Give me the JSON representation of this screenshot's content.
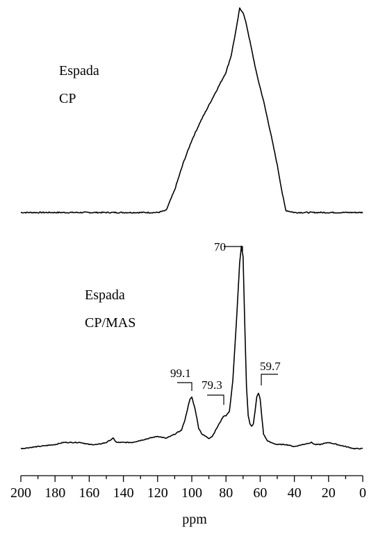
{
  "chart_data": {
    "type": "line",
    "xlabel": "ppm",
    "xlim": [
      200,
      0
    ],
    "x_reversed": true,
    "x_ticks": [
      200,
      180,
      160,
      140,
      120,
      100,
      80,
      60,
      40,
      20,
      0
    ],
    "series": [
      {
        "label_lines": [
          "Espada",
          "CP"
        ],
        "points": [
          [
            200,
            0.01
          ],
          [
            180,
            0.01
          ],
          [
            160,
            0.01
          ],
          [
            140,
            0.01
          ],
          [
            120,
            0.01
          ],
          [
            115,
            0.02
          ],
          [
            110,
            0.12
          ],
          [
            105,
            0.25
          ],
          [
            100,
            0.36
          ],
          [
            95,
            0.45
          ],
          [
            90,
            0.53
          ],
          [
            85,
            0.61
          ],
          [
            80,
            0.69
          ],
          [
            77,
            0.77
          ],
          [
            74,
            0.9
          ],
          [
            72,
            1.0
          ],
          [
            70,
            0.98
          ],
          [
            68,
            0.92
          ],
          [
            66,
            0.84
          ],
          [
            64,
            0.76
          ],
          [
            62,
            0.68
          ],
          [
            58,
            0.55
          ],
          [
            54,
            0.4
          ],
          [
            50,
            0.24
          ],
          [
            47,
            0.1
          ],
          [
            45,
            0.02
          ],
          [
            40,
            0.01
          ],
          [
            30,
            0.01
          ],
          [
            20,
            0.01
          ],
          [
            10,
            0.01
          ],
          [
            0,
            0.01
          ]
        ]
      },
      {
        "label_lines": [
          "Espada",
          "CP/MAS"
        ],
        "points": [
          [
            200,
            0.02
          ],
          [
            190,
            0.03
          ],
          [
            180,
            0.04
          ],
          [
            175,
            0.05
          ],
          [
            170,
            0.05
          ],
          [
            165,
            0.05
          ],
          [
            160,
            0.04
          ],
          [
            155,
            0.04
          ],
          [
            150,
            0.05
          ],
          [
            146,
            0.07
          ],
          [
            144,
            0.05
          ],
          [
            140,
            0.05
          ],
          [
            135,
            0.05
          ],
          [
            130,
            0.06
          ],
          [
            125,
            0.07
          ],
          [
            120,
            0.08
          ],
          [
            115,
            0.07
          ],
          [
            110,
            0.09
          ],
          [
            106,
            0.11
          ],
          [
            104,
            0.16
          ],
          [
            102,
            0.23
          ],
          [
            101,
            0.26
          ],
          [
            100,
            0.27
          ],
          [
            98,
            0.21
          ],
          [
            96,
            0.12
          ],
          [
            94,
            0.09
          ],
          [
            92,
            0.08
          ],
          [
            90,
            0.07
          ],
          [
            88,
            0.08
          ],
          [
            86,
            0.11
          ],
          [
            84,
            0.14
          ],
          [
            82,
            0.17
          ],
          [
            81,
            0.18
          ],
          [
            80,
            0.18
          ],
          [
            78,
            0.2
          ],
          [
            76,
            0.35
          ],
          [
            74,
            0.62
          ],
          [
            72,
            0.92
          ],
          [
            71,
            1.0
          ],
          [
            70,
            0.95
          ],
          [
            69,
            0.62
          ],
          [
            68,
            0.32
          ],
          [
            67,
            0.18
          ],
          [
            66,
            0.14
          ],
          [
            65,
            0.13
          ],
          [
            64,
            0.14
          ],
          [
            63,
            0.2
          ],
          [
            62,
            0.27
          ],
          [
            61,
            0.29
          ],
          [
            60,
            0.26
          ],
          [
            59,
            0.17
          ],
          [
            58,
            0.09
          ],
          [
            56,
            0.06
          ],
          [
            54,
            0.05
          ],
          [
            50,
            0.04
          ],
          [
            45,
            0.04
          ],
          [
            40,
            0.03
          ],
          [
            35,
            0.04
          ],
          [
            30,
            0.05
          ],
          [
            28,
            0.04
          ],
          [
            25,
            0.04
          ],
          [
            20,
            0.05
          ],
          [
            15,
            0.04
          ],
          [
            10,
            0.03
          ],
          [
            5,
            0.02
          ],
          [
            0,
            0.02
          ]
        ],
        "annotations": [
          "70",
          "99.1",
          "79.3",
          "59.7"
        ]
      }
    ]
  }
}
